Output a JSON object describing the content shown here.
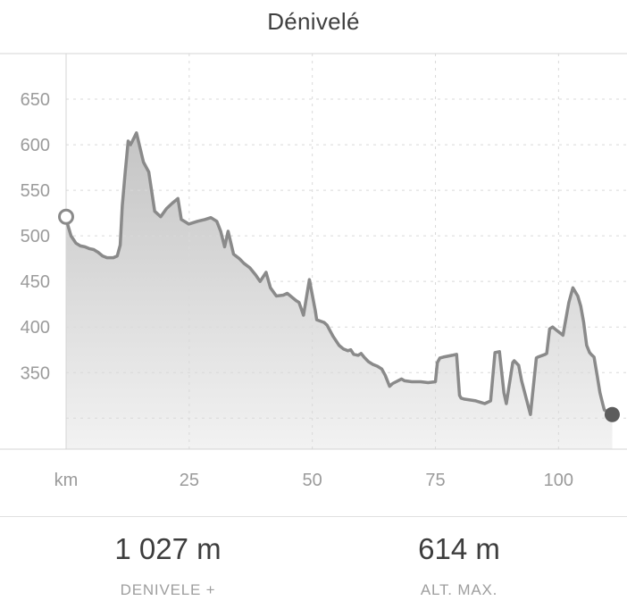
{
  "title": "Dénivelé",
  "stats": {
    "elevation_gain": {
      "value": "1 027 m",
      "label": "DENIVELE +"
    },
    "altitude_max": {
      "value": "614 m",
      "label": "ALT. MAX."
    }
  },
  "chart_data": {
    "type": "area",
    "title": "Dénivelé",
    "x_unit": "km",
    "y_unit": "m",
    "xlim": [
      0,
      113.9
    ],
    "ylim": [
      266,
      700
    ],
    "grid": "dashed",
    "xticks": [
      {
        "value": 0,
        "label": "km"
      },
      {
        "value": 25,
        "label": "25"
      },
      {
        "value": 50,
        "label": "50"
      },
      {
        "value": 75,
        "label": "75"
      },
      {
        "value": 100,
        "label": "100"
      }
    ],
    "yticks": [
      {
        "value": 650,
        "label": "650"
      },
      {
        "value": 600,
        "label": "600"
      },
      {
        "value": 550,
        "label": "550"
      },
      {
        "value": 500,
        "label": "500"
      },
      {
        "value": 450,
        "label": "450"
      },
      {
        "value": 400,
        "label": "400"
      },
      {
        "value": 350,
        "label": "350"
      },
      {
        "value": 300,
        "label": ""
      }
    ],
    "series": [
      {
        "name": "elevation_m",
        "points": [
          [
            0,
            521
          ],
          [
            0.4,
            511
          ],
          [
            1,
            500
          ],
          [
            2,
            492
          ],
          [
            2.9,
            489
          ],
          [
            3.8,
            488
          ],
          [
            4.7,
            486
          ],
          [
            5.6,
            485
          ],
          [
            6.5,
            482
          ],
          [
            7.4,
            478
          ],
          [
            8.3,
            476
          ],
          [
            9.6,
            476
          ],
          [
            10.4,
            478
          ],
          [
            11,
            490
          ],
          [
            11.4,
            533
          ],
          [
            12,
            570
          ],
          [
            12.6,
            604
          ],
          [
            13.1,
            600
          ],
          [
            14.3,
            613
          ],
          [
            15.7,
            581
          ],
          [
            16.8,
            570
          ],
          [
            18,
            527
          ],
          [
            19.2,
            521
          ],
          [
            20.4,
            530
          ],
          [
            21.6,
            536
          ],
          [
            22.7,
            541
          ],
          [
            23.4,
            518
          ],
          [
            24,
            516
          ],
          [
            24.9,
            513
          ],
          [
            26.7,
            516
          ],
          [
            28.2,
            518
          ],
          [
            29.4,
            520
          ],
          [
            30.6,
            516
          ],
          [
            31.4,
            505
          ],
          [
            32.2,
            488
          ],
          [
            32.9,
            505
          ],
          [
            34,
            480
          ],
          [
            35.2,
            475
          ],
          [
            36.1,
            470
          ],
          [
            37.3,
            465
          ],
          [
            38.5,
            457
          ],
          [
            39.4,
            450
          ],
          [
            40.6,
            460
          ],
          [
            41.5,
            443
          ],
          [
            42.7,
            434
          ],
          [
            44.1,
            435
          ],
          [
            44.9,
            437
          ],
          [
            46.7,
            429
          ],
          [
            47.3,
            427
          ],
          [
            48.2,
            413
          ],
          [
            49.4,
            452
          ],
          [
            50.6,
            418
          ],
          [
            50.9,
            408
          ],
          [
            52.4,
            405
          ],
          [
            53,
            402
          ],
          [
            54.2,
            390
          ],
          [
            55.4,
            380
          ],
          [
            56.3,
            376
          ],
          [
            57.2,
            374
          ],
          [
            57.8,
            375
          ],
          [
            58.4,
            370
          ],
          [
            59.3,
            369
          ],
          [
            59.9,
            371
          ],
          [
            60.5,
            367
          ],
          [
            61.4,
            362
          ],
          [
            62.3,
            359
          ],
          [
            63.2,
            357
          ],
          [
            64.1,
            354
          ],
          [
            64.8,
            347
          ],
          [
            65.7,
            335
          ],
          [
            66.3,
            338
          ],
          [
            68.1,
            343
          ],
          [
            68.7,
            341
          ],
          [
            70.2,
            340
          ],
          [
            71.1,
            340
          ],
          [
            72,
            340
          ],
          [
            73.5,
            339
          ],
          [
            75,
            340
          ],
          [
            75.4,
            361
          ],
          [
            75.9,
            366
          ],
          [
            76.6,
            367
          ],
          [
            78.4,
            369
          ],
          [
            79.3,
            370
          ],
          [
            79.9,
            325
          ],
          [
            80.2,
            322
          ],
          [
            80.8,
            321
          ],
          [
            82,
            320
          ],
          [
            83.2,
            319
          ],
          [
            84.4,
            317
          ],
          [
            85,
            316
          ],
          [
            86.2,
            319
          ],
          [
            87.1,
            372
          ],
          [
            88,
            373
          ],
          [
            88.9,
            328
          ],
          [
            89.4,
            316
          ],
          [
            90.7,
            361
          ],
          [
            91,
            363
          ],
          [
            91.9,
            358
          ],
          [
            92.5,
            341
          ],
          [
            94.3,
            304
          ],
          [
            95.5,
            366
          ],
          [
            95.8,
            367
          ],
          [
            97.3,
            370
          ],
          [
            97.6,
            371
          ],
          [
            98.2,
            398
          ],
          [
            98.8,
            400
          ],
          [
            99.7,
            396
          ],
          [
            100.9,
            391
          ],
          [
            102.1,
            427
          ],
          [
            102.9,
            443
          ],
          [
            103.9,
            434
          ],
          [
            104.5,
            423
          ],
          [
            105.1,
            405
          ],
          [
            105.7,
            380
          ],
          [
            106.3,
            372
          ],
          [
            106.6,
            370
          ],
          [
            107.2,
            367
          ],
          [
            107.8,
            348
          ],
          [
            108.4,
            328
          ],
          [
            109,
            315
          ],
          [
            109.3,
            309
          ],
          [
            110.9,
            304
          ]
        ]
      }
    ],
    "markers": {
      "start": {
        "x": 0,
        "y": 521,
        "style": "open-circle"
      },
      "end": {
        "x": 110.9,
        "y": 304,
        "style": "filled-circle"
      }
    },
    "colors": {
      "line": "#8a8a8a",
      "fill_top": "#b9b9b9",
      "fill_bottom": "#f2f2f2",
      "grid": "#d9d9d9",
      "border": "#d4d4d4",
      "tick_label": "#9b9b9b",
      "end_marker": "#5c5c5c"
    }
  }
}
